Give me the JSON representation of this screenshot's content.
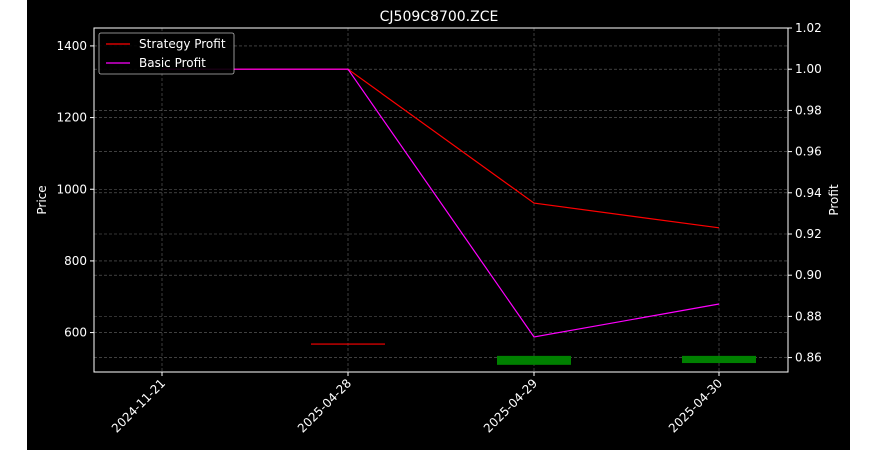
{
  "chart_data": {
    "type": "line",
    "title": "CJ509C8700.ZCE",
    "ylabel_left": "Price",
    "ylabel_right": "Profit",
    "categories": [
      "2024-11-21",
      "2025-04-28",
      "2025-04-29",
      "2025-04-30"
    ],
    "ylim_left": [
      490,
      1450
    ],
    "ylim_right": [
      0.853,
      1.02
    ],
    "yticks_left": [
      600,
      800,
      1000,
      1200,
      1400
    ],
    "yticks_right": [
      0.86,
      0.88,
      0.9,
      0.92,
      0.94,
      0.96,
      0.98,
      1.0,
      1.02
    ],
    "yticks_right_labels": [
      "0.86",
      "0.88",
      "0.90",
      "0.92",
      "0.94",
      "0.96",
      "0.98",
      "1.00",
      "1.02"
    ],
    "grid": true,
    "legend_position": "top-left",
    "series": [
      {
        "name": "Strategy Profit",
        "axis": "right",
        "color": "#ff0000",
        "values": [
          1.0,
          1.0,
          0.935,
          0.923
        ]
      },
      {
        "name": "Basic Profit",
        "axis": "right",
        "color": "#ff00ff",
        "values": [
          1.0,
          1.0,
          0.87,
          0.886
        ]
      }
    ],
    "price_bars": [
      {
        "category": "2025-04-28",
        "open": 568,
        "close": 568,
        "color": "#ff0000"
      },
      {
        "category": "2025-04-29",
        "open": 510,
        "close": 535,
        "color": "#008000"
      },
      {
        "category": "2025-04-30",
        "open": 515,
        "close": 535,
        "color": "#008000"
      }
    ],
    "colors": {
      "background": "#000000",
      "grid": "#808080",
      "text": "#ffffff"
    }
  }
}
